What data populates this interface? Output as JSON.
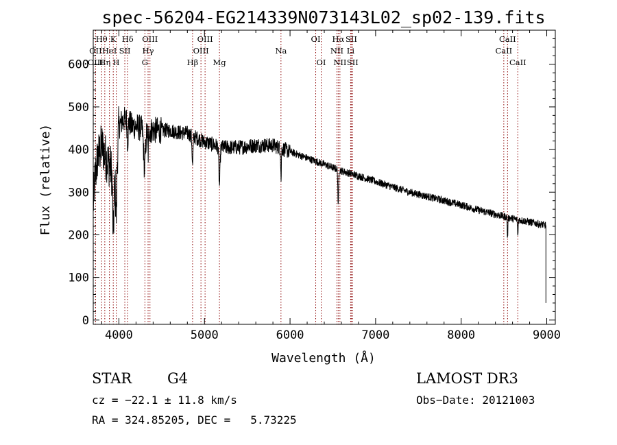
{
  "chart_data": {
    "type": "line",
    "title": "spec-56204-EG214339N073143L02_sp02-139.fits",
    "xlabel": "Wavelength (Å)",
    "ylabel": "Flux (relative)",
    "xlim": [
      3700,
      9100
    ],
    "ylim": [
      -10,
      680
    ],
    "xticks": [
      4000,
      5000,
      6000,
      7000,
      8000,
      9000
    ],
    "yticks": [
      0,
      100,
      200,
      300,
      400,
      500,
      600
    ],
    "line_color": "#8b0000",
    "spectrum_anchors": [
      [
        3700,
        270
      ],
      [
        3720,
        330
      ],
      [
        3750,
        380
      ],
      [
        3800,
        410
      ],
      [
        3850,
        380
      ],
      [
        3900,
        360
      ],
      [
        3950,
        320
      ],
      [
        3980,
        390
      ],
      [
        4000,
        455
      ],
      [
        4050,
        470
      ],
      [
        4100,
        470
      ],
      [
        4150,
        455
      ],
      [
        4200,
        455
      ],
      [
        4300,
        445
      ],
      [
        4400,
        445
      ],
      [
        4500,
        445
      ],
      [
        4600,
        445
      ],
      [
        4700,
        440
      ],
      [
        4800,
        438
      ],
      [
        4900,
        428
      ],
      [
        5000,
        418
      ],
      [
        5200,
        405
      ],
      [
        5400,
        405
      ],
      [
        5600,
        410
      ],
      [
        5800,
        410
      ],
      [
        6000,
        395
      ],
      [
        6200,
        380
      ],
      [
        6400,
        365
      ],
      [
        6600,
        350
      ],
      [
        6800,
        338
      ],
      [
        7000,
        325
      ],
      [
        7200,
        312
      ],
      [
        7400,
        300
      ],
      [
        7600,
        290
      ],
      [
        7800,
        280
      ],
      [
        8000,
        270
      ],
      [
        8200,
        258
      ],
      [
        8400,
        248
      ],
      [
        8600,
        238
      ],
      [
        8800,
        230
      ],
      [
        8990,
        222
      ]
    ],
    "absorption_features": [
      {
        "center": 3934,
        "width": 10,
        "depth": 130
      },
      {
        "center": 3969,
        "width": 10,
        "depth": 120
      },
      {
        "center": 4102,
        "width": 8,
        "depth": 50
      },
      {
        "center": 4300,
        "width": 15,
        "depth": 90
      },
      {
        "center": 4341,
        "width": 6,
        "depth": 60
      },
      {
        "center": 4861,
        "width": 8,
        "depth": 70
      },
      {
        "center": 5175,
        "width": 10,
        "depth": 90
      },
      {
        "center": 5895,
        "width": 5,
        "depth": 75
      },
      {
        "center": 6563,
        "width": 6,
        "depth": 90
      },
      {
        "center": 8542,
        "width": 5,
        "depth": 50
      },
      {
        "center": 8662,
        "width": 5,
        "depth": 40
      }
    ],
    "spectral_lines": [
      {
        "label": "Hθ",
        "x": 3798,
        "row": 1
      },
      {
        "label": "OII",
        "x": 3727,
        "row": 2
      },
      {
        "label": "OIII",
        "x": 3727,
        "row": 3
      },
      {
        "label": "Hη",
        "x": 3835,
        "row": 3
      },
      {
        "label": "HeI",
        "x": 3889,
        "row": 2
      },
      {
        "label": "K",
        "x": 3934,
        "row": 1
      },
      {
        "label": "H",
        "x": 3969,
        "row": 3
      },
      {
        "label": "SII",
        "x": 4069,
        "row": 2
      },
      {
        "label": "Hδ",
        "x": 4102,
        "row": 1
      },
      {
        "label": "OIII",
        "x": 4363,
        "row": 1
      },
      {
        "label": "Hγ",
        "x": 4341,
        "row": 2
      },
      {
        "label": "G",
        "x": 4304,
        "row": 3
      },
      {
        "label": "Hβ",
        "x": 4861,
        "row": 3
      },
      {
        "label": "OIII",
        "x": 5007,
        "row": 1
      },
      {
        "label": "OIII",
        "x": 4959,
        "row": 2
      },
      {
        "label": "Mg",
        "x": 5175,
        "row": 3
      },
      {
        "label": "Na",
        "x": 5894,
        "row": 2
      },
      {
        "label": "OI",
        "x": 6300,
        "row": 1
      },
      {
        "label": "OI",
        "x": 6364,
        "row": 3
      },
      {
        "label": "Hα",
        "x": 6563,
        "row": 1
      },
      {
        "label": "NII",
        "x": 6548,
        "row": 2
      },
      {
        "label": "NII",
        "x": 6583,
        "row": 3
      },
      {
        "label": "SII",
        "x": 6716,
        "row": 1
      },
      {
        "label": "Li",
        "x": 6708,
        "row": 2
      },
      {
        "label": "SII",
        "x": 6731,
        "row": 3
      },
      {
        "label": "CaII",
        "x": 8542,
        "row": 1
      },
      {
        "label": "CaII",
        "x": 8498,
        "row": 2
      },
      {
        "label": "CaII",
        "x": 8662,
        "row": 3
      }
    ]
  },
  "info": {
    "class": "STAR",
    "subclass": "G4",
    "survey": "LAMOST DR3",
    "redshift": "cz = −22.1 ± 11.8 km/s",
    "obs_date": "Obs−Date: 20121003",
    "coords": "RA = 324.85205, DEC =   5.73225"
  }
}
